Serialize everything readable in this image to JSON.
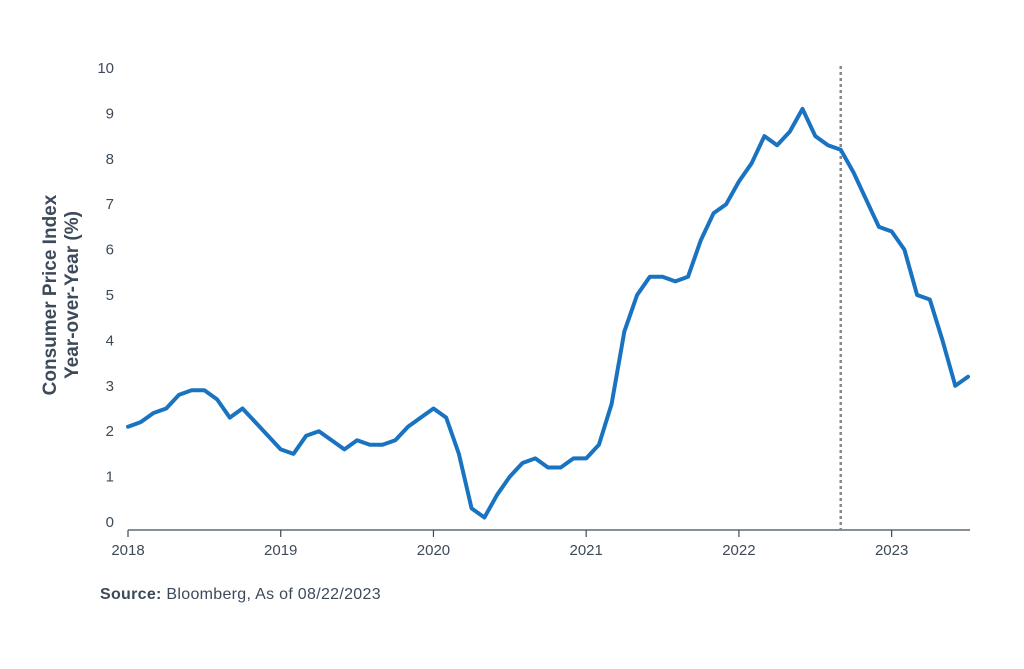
{
  "chart_data": {
    "type": "line",
    "ylabel_lines": [
      "Consumer Price Index",
      "Year-over-Year (%)"
    ],
    "xlabel": "",
    "ylim": [
      0,
      10
    ],
    "yticks": [
      "0",
      "1",
      "2",
      "3",
      "4",
      "5",
      "6",
      "7",
      "8",
      "9",
      "10"
    ],
    "xlim": [
      "2018-01",
      "2023-07"
    ],
    "xticks": [
      "2018",
      "2019",
      "2020",
      "2021",
      "2022",
      "2023"
    ],
    "grid": false,
    "line_color": "#1a73c0",
    "reference_line": {
      "x": "2022-09",
      "style": "dotted",
      "color": "#888888"
    },
    "series": [
      {
        "x": [
          "2018-01",
          "2018-02",
          "2018-03",
          "2018-04",
          "2018-05",
          "2018-06",
          "2018-07",
          "2018-08",
          "2018-09",
          "2018-10",
          "2018-11",
          "2018-12",
          "2019-01",
          "2019-02",
          "2019-03",
          "2019-04",
          "2019-05",
          "2019-06",
          "2019-07",
          "2019-08",
          "2019-09",
          "2019-10",
          "2019-11",
          "2019-12",
          "2020-01",
          "2020-02",
          "2020-03",
          "2020-04",
          "2020-05",
          "2020-06",
          "2020-07",
          "2020-08",
          "2020-09",
          "2020-10",
          "2020-11",
          "2020-12",
          "2021-01",
          "2021-02",
          "2021-03",
          "2021-04",
          "2021-05",
          "2021-06",
          "2021-07",
          "2021-08",
          "2021-09",
          "2021-10",
          "2021-11",
          "2021-12",
          "2022-01",
          "2022-02",
          "2022-03",
          "2022-04",
          "2022-05",
          "2022-06",
          "2022-07",
          "2022-08",
          "2022-09",
          "2022-10",
          "2022-11",
          "2022-12",
          "2023-01",
          "2023-02",
          "2023-03",
          "2023-04",
          "2023-05",
          "2023-06",
          "2023-07"
        ],
        "values": [
          2.1,
          2.2,
          2.4,
          2.5,
          2.8,
          2.9,
          2.9,
          2.7,
          2.3,
          2.5,
          2.2,
          1.9,
          1.6,
          1.5,
          1.9,
          2.0,
          1.8,
          1.6,
          1.8,
          1.7,
          1.7,
          1.8,
          2.1,
          2.3,
          2.5,
          2.3,
          1.5,
          0.3,
          0.1,
          0.6,
          1.0,
          1.3,
          1.4,
          1.2,
          1.2,
          1.4,
          1.4,
          1.7,
          2.6,
          4.2,
          5.0,
          5.4,
          5.4,
          5.3,
          5.4,
          6.2,
          6.8,
          7.0,
          7.5,
          7.9,
          8.5,
          8.3,
          8.6,
          9.1,
          8.5,
          8.3,
          8.2,
          7.7,
          7.1,
          6.5,
          6.4,
          6.0,
          5.0,
          4.9,
          4.0,
          3.0,
          3.2
        ]
      }
    ]
  },
  "source": {
    "label": "Source:",
    "text": "Bloomberg, As of 08/22/2023"
  }
}
